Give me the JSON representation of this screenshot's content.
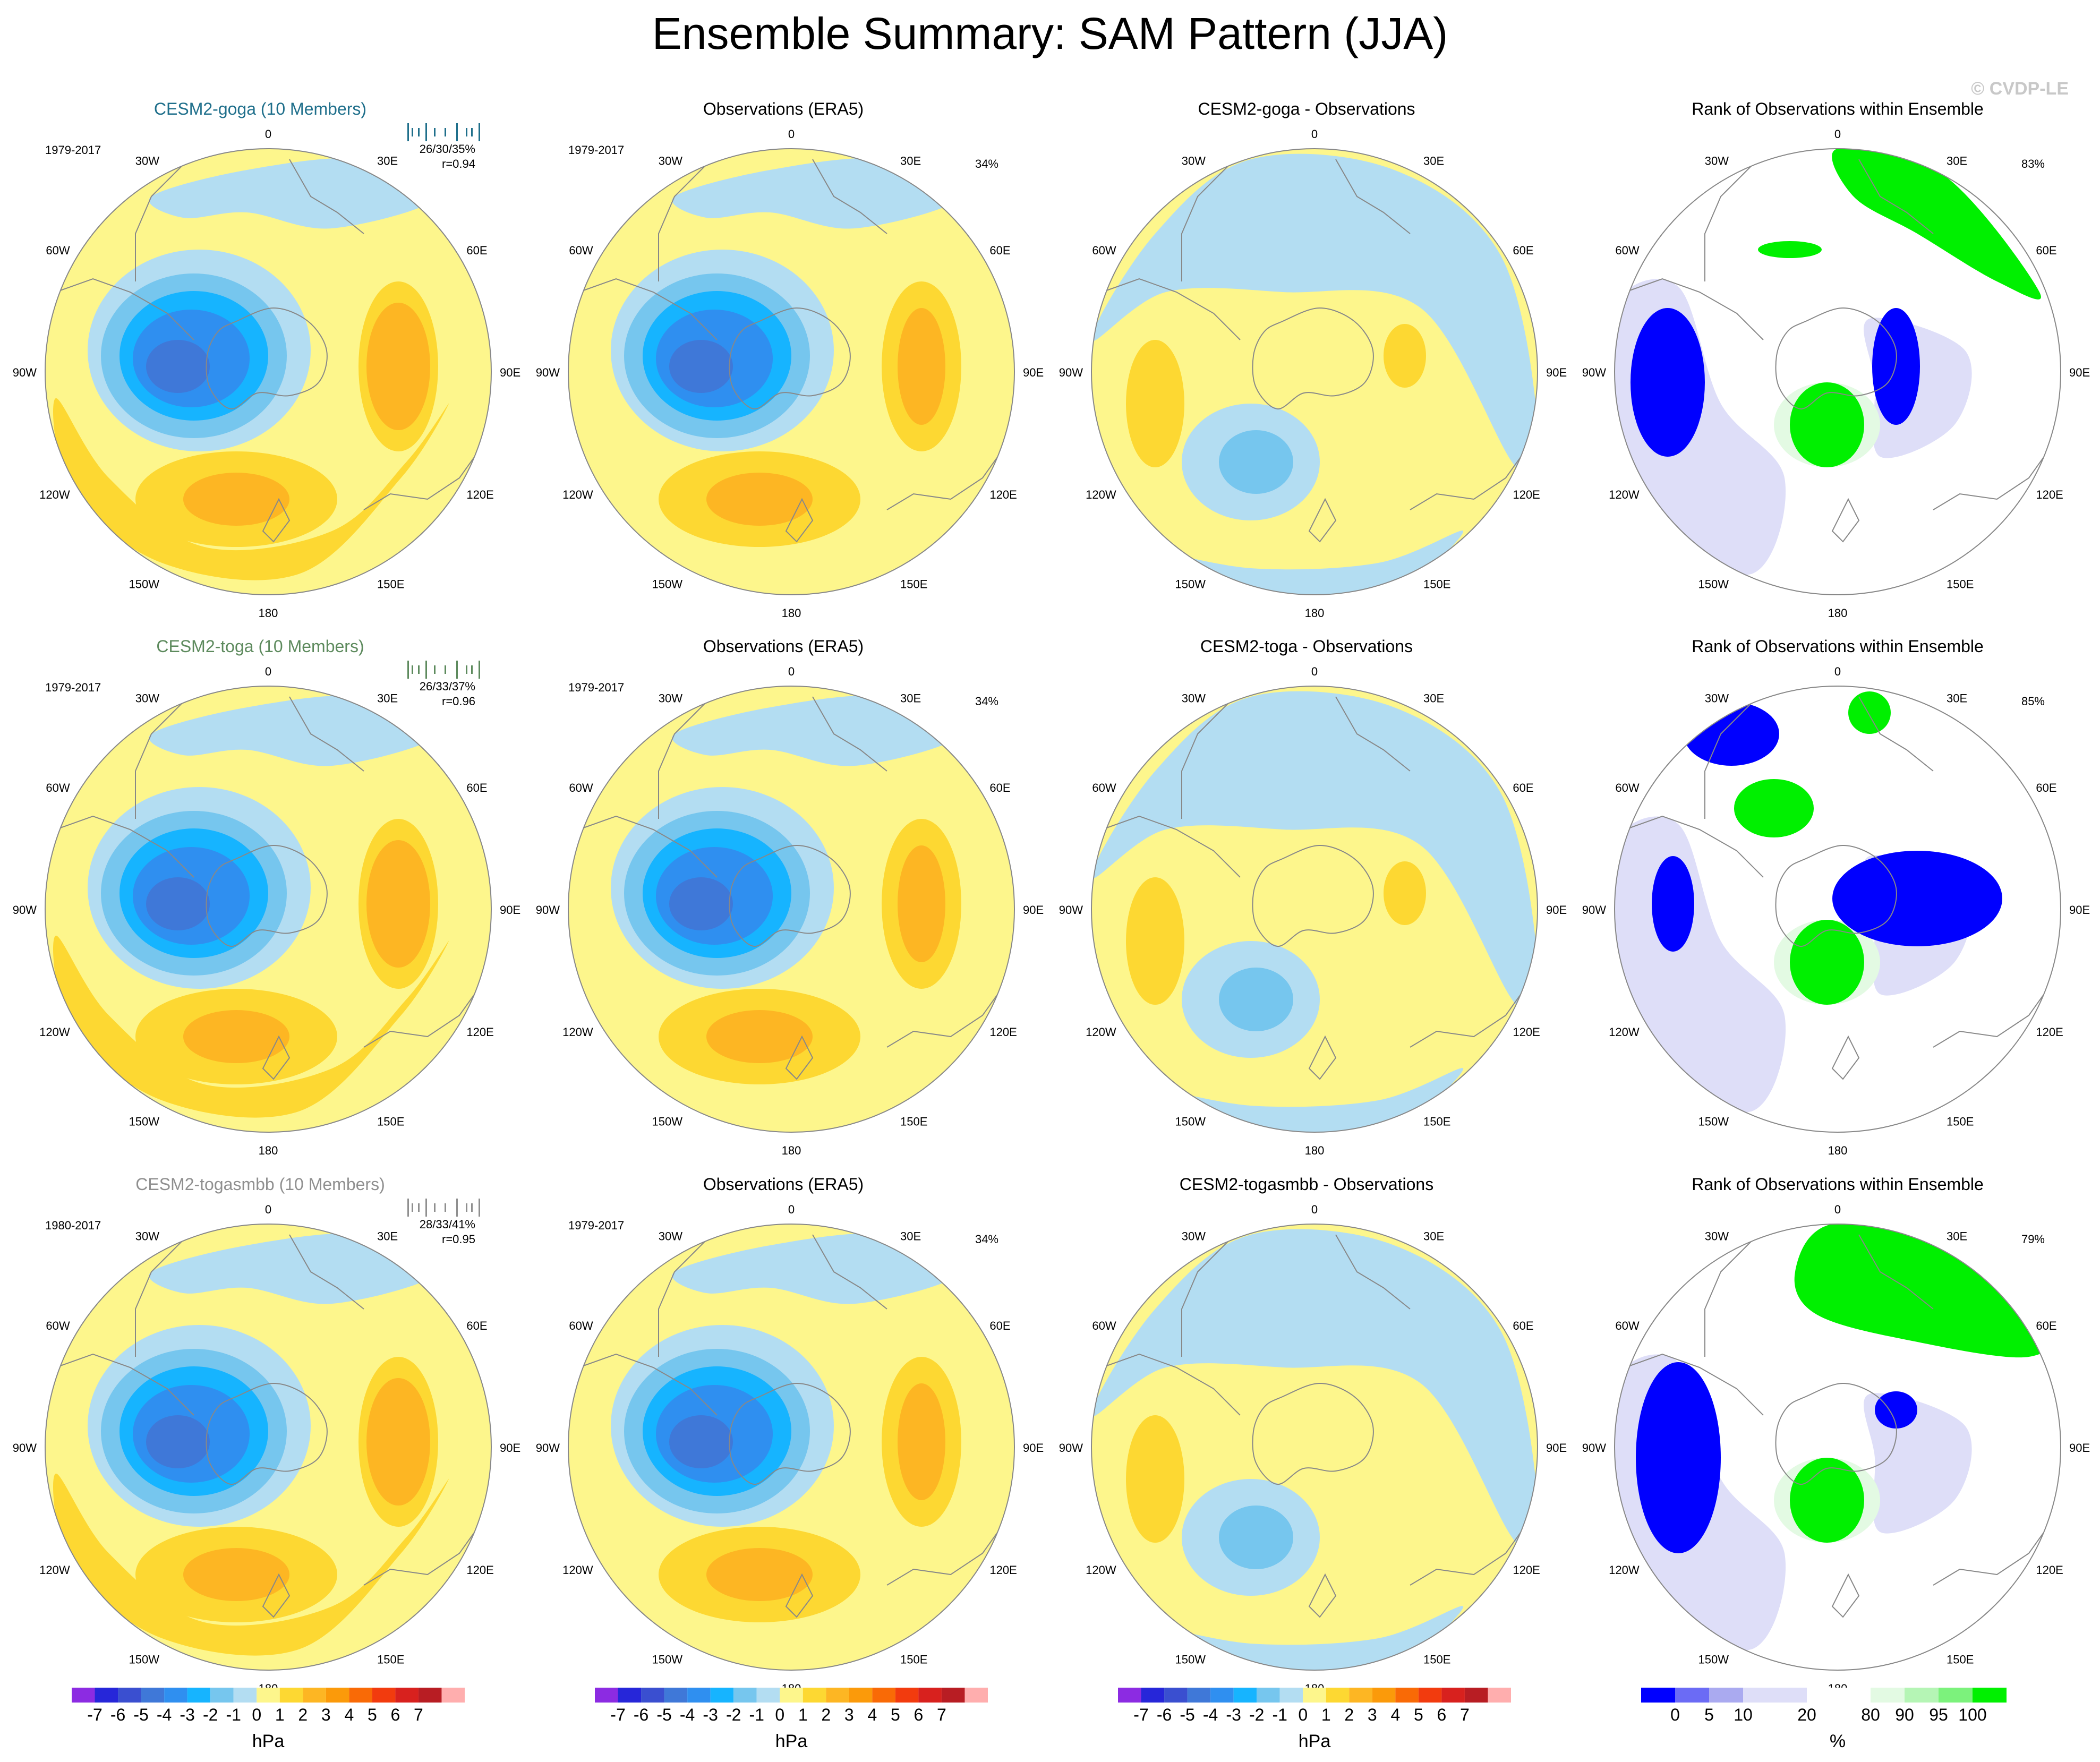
{
  "title": "Ensemble Summary: SAM Pattern (JJA)",
  "watermark": "© CVDP-LE",
  "palette": {
    "c_m7": "#8c2be2",
    "c_m6": "#2626d9",
    "c_m5": "#3a4fd0",
    "c_m4": "#3f78d8",
    "c_m3": "#2f8ff0",
    "c_m2": "#16b4ff",
    "c_m1": "#76c6ee",
    "c_m0": "#b3ddf2",
    "c_p0": "#fdf68c",
    "c_p1": "#fdd832",
    "c_p2": "#fdb623",
    "c_p3": "#fb9a0a",
    "c_p4": "#f96a06",
    "c_p5": "#f23b0e",
    "c_p6": "#d8211e",
    "c_p7": "#b81d23",
    "c_p8": "#ffaeae",
    "rank_0": "#0000ff",
    "rank_5": "#6b6bf5",
    "rank_10": "#aaaaf0",
    "rank_20": "#dedef8",
    "rank_80": "#ffffff",
    "rank_90": "#e3fae3",
    "rank_95": "#b5f5b5",
    "rank_100": "#7cf27c",
    "rank_top": "#00f000",
    "land": "#888888",
    "ring": "#888888"
  },
  "meridian_labels": [
    "0",
    "30E",
    "60E",
    "90E",
    "120E",
    "150E",
    "180",
    "150W",
    "120W",
    "90W",
    "60W",
    "30W"
  ],
  "rows": [
    {
      "model_title": "CESM2-goga (10 Members)",
      "model_title_color": "#1f6f8b",
      "model_years": "1979-2017",
      "model_stats": "26/30/35%",
      "model_r": "r=0.94",
      "obs_title": "Observations (ERA5)",
      "obs_years": "1979-2017",
      "obs_pct": "34%",
      "diff_title": "CESM2-goga - Observations",
      "rank_title": "Rank of Observations within Ensemble",
      "rank_pct": "83%"
    },
    {
      "model_title": "CESM2-toga (10 Members)",
      "model_title_color": "#5d8a5d",
      "model_years": "1979-2017",
      "model_stats": "26/33/37%",
      "model_r": "r=0.96",
      "obs_title": "Observations (ERA5)",
      "obs_years": "1979-2017",
      "obs_pct": "34%",
      "diff_title": "CESM2-toga - Observations",
      "rank_title": "Rank of Observations within Ensemble",
      "rank_pct": "85%"
    },
    {
      "model_title": "CESM2-togasmbb (10 Members)",
      "model_title_color": "#8f8f8f",
      "model_years": "1980-2017",
      "model_stats": "28/33/41%",
      "model_r": "r=0.95",
      "obs_title": "Observations (ERA5)",
      "obs_years": "1979-2017",
      "obs_pct": "34%",
      "diff_title": "CESM2-togasmbb - Observations",
      "rank_title": "Rank of Observations within Ensemble",
      "rank_pct": "79%"
    }
  ],
  "colorbar_hpa": {
    "ticks": [
      "-7",
      "-6",
      "-5",
      "-4",
      "-3",
      "-2",
      "-1",
      "0",
      "1",
      "2",
      "3",
      "4",
      "5",
      "6",
      "7"
    ],
    "unit": "hPa"
  },
  "colorbar_rank": {
    "ticks": [
      "0",
      "5",
      "10",
      "20",
      "80",
      "90",
      "95",
      "100"
    ],
    "unit": "%"
  }
}
